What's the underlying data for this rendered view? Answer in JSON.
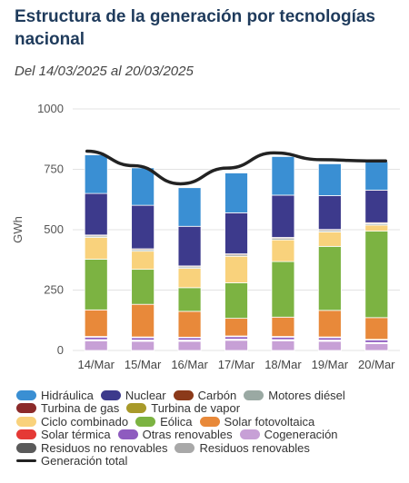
{
  "header": {
    "title": "Estructura de la generación por tecnologías nacional",
    "subtitle": "Del 14/03/2025 al 20/03/2025"
  },
  "chart_data": {
    "type": "bar",
    "stacked": true,
    "title": "Estructura de la generación por tecnologías nacional",
    "subtitle": "Del 14/03/2025 al 20/03/2025",
    "xlabel": "",
    "ylabel": "GWh",
    "ylim": [
      0,
      1000
    ],
    "yticks": [
      0,
      250,
      500,
      750,
      1000
    ],
    "categories": [
      "14/Mar",
      "15/Mar",
      "16/Mar",
      "17/Mar",
      "18/Mar",
      "19/Mar",
      "20/Mar"
    ],
    "grid": true,
    "legend_position": "bottom",
    "series": [
      {
        "name": "Cogeneración",
        "color": "#c7a0d6",
        "values": [
          40,
          38,
          38,
          42,
          40,
          38,
          28
        ]
      },
      {
        "name": "Residuos no renovables",
        "color": "#5a5a5a",
        "values": [
          3,
          3,
          3,
          3,
          3,
          3,
          3
        ]
      },
      {
        "name": "Residuos renovables",
        "color": "#a8a8a8",
        "values": [
          2,
          2,
          2,
          2,
          2,
          2,
          2
        ]
      },
      {
        "name": "Otras renovables",
        "color": "#8e5bbf",
        "values": [
          10,
          10,
          10,
          10,
          10,
          10,
          10
        ]
      },
      {
        "name": "Solar térmica",
        "color": "#e53935",
        "values": [
          3,
          3,
          2,
          3,
          3,
          3,
          3
        ]
      },
      {
        "name": "Solar fotovoltaica",
        "color": "#e8893a",
        "values": [
          110,
          135,
          107,
          73,
          80,
          110,
          90
        ]
      },
      {
        "name": "Eólica",
        "color": "#7cb342",
        "values": [
          210,
          145,
          98,
          147,
          230,
          265,
          358
        ]
      },
      {
        "name": "Ciclo combinado",
        "color": "#f9d27c",
        "values": [
          90,
          75,
          80,
          110,
          90,
          60,
          25
        ]
      },
      {
        "name": "Turbina de gas",
        "color": "#8b2a2a",
        "values": [
          0,
          0,
          0,
          0,
          0,
          0,
          0
        ]
      },
      {
        "name": "Turbina de vapor",
        "color": "#a89a2a",
        "values": [
          0,
          0,
          0,
          0,
          0,
          0,
          0
        ]
      },
      {
        "name": "Motores diésel",
        "color": "#9aa9a3",
        "values": [
          6,
          6,
          6,
          6,
          6,
          6,
          6
        ]
      },
      {
        "name": "Carbón",
        "color": "#8b3a1a",
        "values": [
          4,
          4,
          4,
          4,
          4,
          4,
          4
        ]
      },
      {
        "name": "Nuclear",
        "color": "#3d3a8c",
        "values": [
          172,
          180,
          164,
          170,
          175,
          140,
          135
        ]
      },
      {
        "name": "Hidráulica",
        "color": "#3a8fd3",
        "values": [
          160,
          155,
          160,
          165,
          160,
          132,
          118
        ]
      }
    ],
    "total_line": {
      "name": "Generación total",
      "color": "#222222",
      "values": [
        825,
        765,
        690,
        755,
        818,
        790,
        785
      ]
    }
  },
  "legend": {
    "rows": [
      [
        {
          "label": "Hidráulica",
          "color": "#3a8fd3",
          "icon": "pill"
        },
        {
          "label": "Nuclear",
          "color": "#3d3a8c",
          "icon": "pill"
        },
        {
          "label": "Carbón",
          "color": "#8b3a1a",
          "icon": "pill"
        },
        {
          "label": "Motores diésel",
          "color": "#9aa9a3",
          "icon": "pill"
        }
      ],
      [
        {
          "label": "Turbina de gas",
          "color": "#8b2a2a",
          "icon": "pill"
        },
        {
          "label": "Turbina de vapor",
          "color": "#a89a2a",
          "icon": "pill"
        }
      ],
      [
        {
          "label": "Ciclo combinado",
          "color": "#f9d27c",
          "icon": "pill"
        },
        {
          "label": "Eólica",
          "color": "#7cb342",
          "icon": "pill"
        },
        {
          "label": "Solar fotovoltaica",
          "color": "#e8893a",
          "icon": "pill"
        }
      ],
      [
        {
          "label": "Solar térmica",
          "color": "#e53935",
          "icon": "pill"
        },
        {
          "label": "Otras renovables",
          "color": "#8e5bbf",
          "icon": "pill"
        },
        {
          "label": "Cogeneración",
          "color": "#c7a0d6",
          "icon": "pill"
        }
      ],
      [
        {
          "label": "Residuos no renovables",
          "color": "#5a5a5a",
          "icon": "pill"
        },
        {
          "label": "Residuos renovables",
          "color": "#a8a8a8",
          "icon": "pill"
        }
      ],
      [
        {
          "label": "Generación total",
          "color": "#222222",
          "icon": "line"
        }
      ]
    ]
  }
}
